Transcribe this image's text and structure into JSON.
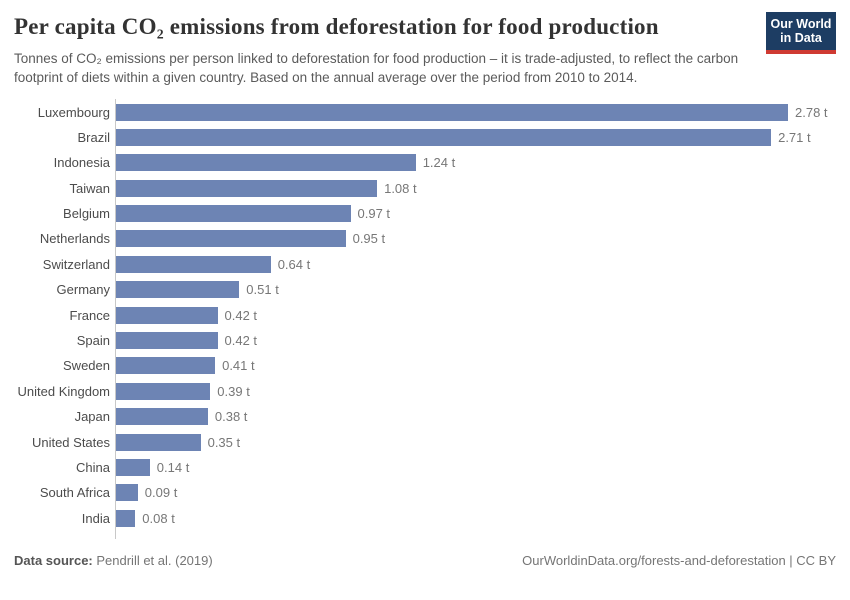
{
  "header": {
    "title": "Per capita CO₂ emissions from deforestation for food production",
    "subtitle": "Tonnes of CO₂ emissions per person linked to deforestation for food production – it is trade-adjusted, to reflect the carbon footprint of diets within a given country. Based on the annual average over the period from 2010 to 2014.",
    "logo": {
      "line1": "Our World",
      "line2": "in Data",
      "bg_color": "#1d3d63",
      "accent_color": "#cf3a32"
    }
  },
  "chart_data": {
    "type": "bar",
    "orientation": "horizontal",
    "title": "Per capita CO₂ emissions from deforestation for food production",
    "categories": [
      "Luxembourg",
      "Brazil",
      "Indonesia",
      "Taiwan",
      "Belgium",
      "Netherlands",
      "Switzerland",
      "Germany",
      "France",
      "Spain",
      "Sweden",
      "United Kingdom",
      "Japan",
      "United States",
      "China",
      "South Africa",
      "India"
    ],
    "values": [
      2.78,
      2.71,
      1.24,
      1.08,
      0.97,
      0.95,
      0.64,
      0.51,
      0.42,
      0.42,
      0.41,
      0.39,
      0.38,
      0.35,
      0.14,
      0.09,
      0.08
    ],
    "value_labels": [
      "2.78 t",
      "2.71 t",
      "1.24 t",
      "1.08 t",
      "0.97 t",
      "0.95 t",
      "0.64 t",
      "0.51 t",
      "0.42 t",
      "0.42 t",
      "0.41 t",
      "0.39 t",
      "0.38 t",
      "0.35 t",
      "0.14 t",
      "0.09 t",
      "0.08 t"
    ],
    "unit": "t",
    "xlim": [
      0,
      2.78
    ],
    "bar_color": "#6d84b4",
    "grid": false,
    "legend": "none"
  },
  "footer": {
    "source_label": "Data source:",
    "source_value": " Pendrill et al. (2019)",
    "right_text": "OurWorldinData.org/forests-and-deforestation | CC BY"
  }
}
